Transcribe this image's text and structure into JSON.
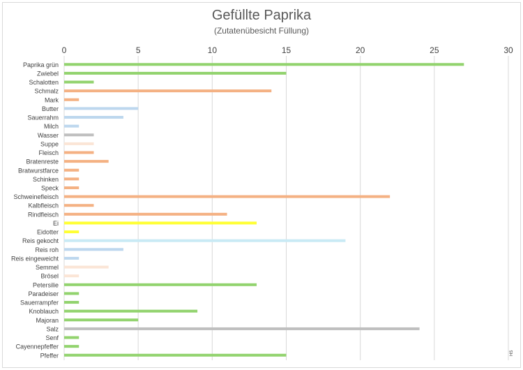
{
  "chart_data": {
    "type": "bar",
    "orientation": "horizontal",
    "title": "Gefüllte Paprika",
    "subtitle": "(Zutatenübesicht Füllung)",
    "xlim": [
      0,
      30
    ],
    "xticks": [
      0,
      5,
      10,
      15,
      20,
      25,
      30
    ],
    "x_axis_position": "top",
    "grid": "vertical",
    "legend": "none",
    "categories": [
      "Paprika grün",
      "Zwiebel",
      "Schalotten",
      "Schmalz",
      "Mark",
      "Butter",
      "Sauerrahm",
      "Milch",
      "Wasser",
      "Suppe",
      "Fleisch",
      "Bratenreste",
      "Bratwurstfarce",
      "Schinken",
      "Speck",
      "Schweinefleisch",
      "Kalbfleisch",
      "Rindfleisch",
      "Ei",
      "Eidotter",
      "Reis gekocht",
      "Reis roh",
      "Reis eingeweicht",
      "Semmel",
      "Brösel",
      "Petersilie",
      "Paradeiser",
      "Sauerrampfer",
      "Knoblauch",
      "Majoran",
      "Salz",
      "Senf",
      "Cayennepfeffer",
      "Pfeffer"
    ],
    "values": [
      27,
      15,
      2,
      14,
      1,
      5,
      4,
      1,
      2,
      2,
      2,
      3,
      1,
      1,
      1,
      22,
      2,
      11,
      13,
      1,
      19,
      4,
      1,
      3,
      1,
      13,
      1,
      1,
      9,
      5,
      24,
      1,
      1,
      15
    ],
    "bar_colors": [
      "#92d36e",
      "#92d36e",
      "#92d36e",
      "#f4b183",
      "#f4b183",
      "#bdd7ee",
      "#bdd7ee",
      "#bdd7ee",
      "#bfbfbf",
      "#fbe5d6",
      "#f4b183",
      "#f4b183",
      "#f4b183",
      "#f4b183",
      "#f4b183",
      "#f4b183",
      "#f4b183",
      "#f4b183",
      "#ffff33",
      "#ffff33",
      "#c9eaf5",
      "#bdd7ee",
      "#bdd7ee",
      "#fbe5d6",
      "#fbe5d6",
      "#92d36e",
      "#92d36e",
      "#92d36e",
      "#92d36e",
      "#92d36e",
      "#bfbfbf",
      "#92d36e",
      "#92d36e",
      "#92d36e"
    ]
  },
  "corner_note": "HS"
}
